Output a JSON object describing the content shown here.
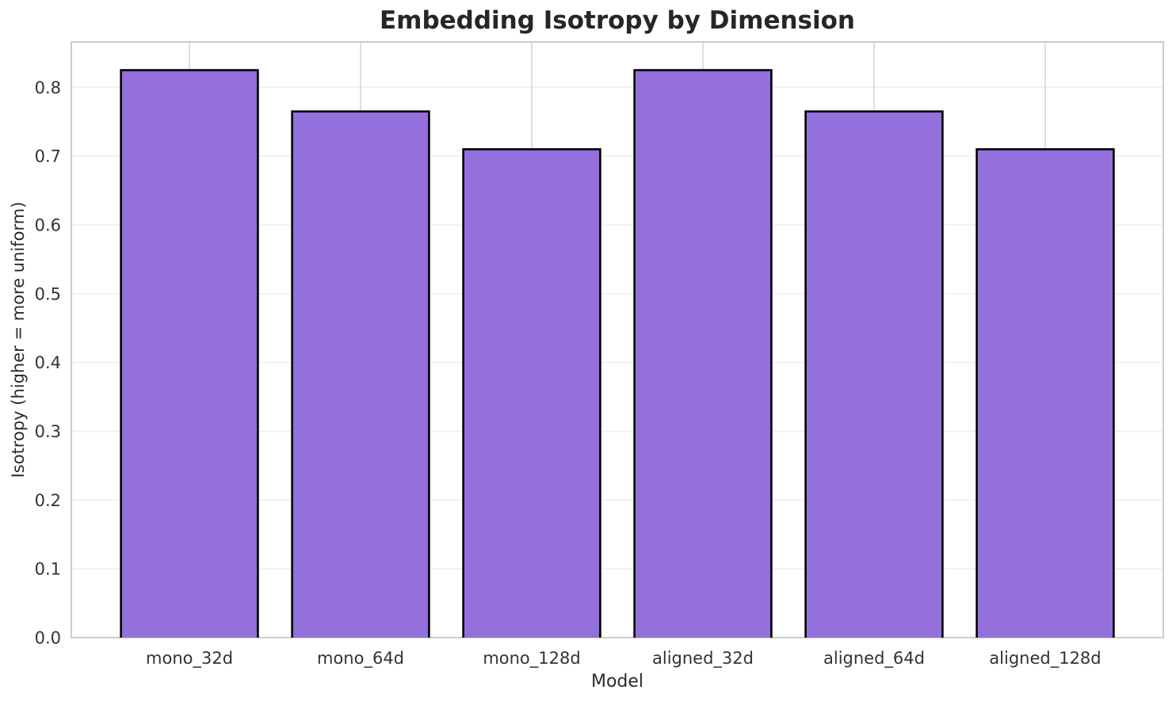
{
  "figure": {
    "background_color": "#ffffff"
  },
  "chart_data": {
    "type": "bar",
    "title": "Embedding Isotropy by Dimension",
    "xlabel": "Model",
    "ylabel": "Isotropy (higher = more uniform)",
    "categories": [
      "mono_32d",
      "mono_64d",
      "mono_128d",
      "aligned_32d",
      "aligned_64d",
      "aligned_128d"
    ],
    "values": [
      0.825,
      0.765,
      0.71,
      0.825,
      0.765,
      0.71
    ],
    "ylim": [
      0,
      0.866
    ],
    "yticks": [
      0.0,
      0.1,
      0.2,
      0.3,
      0.4,
      0.5,
      0.6,
      0.7,
      0.8
    ],
    "ytick_labels": [
      "0.0",
      "0.1",
      "0.2",
      "0.3",
      "0.4",
      "0.5",
      "0.6",
      "0.7",
      "0.8"
    ],
    "bar_width_fraction": 0.8,
    "grid": true,
    "legend": "none",
    "colors": {
      "bar_fill": "#9370DB",
      "bar_edge": "#000000",
      "grid_horizontal": "#eeeeee",
      "grid_vertical": "#d4d4d4",
      "spine": "#cccccc",
      "tick_label": "#333333",
      "axis_label": "#2b2b2b",
      "title": "#262626"
    }
  }
}
